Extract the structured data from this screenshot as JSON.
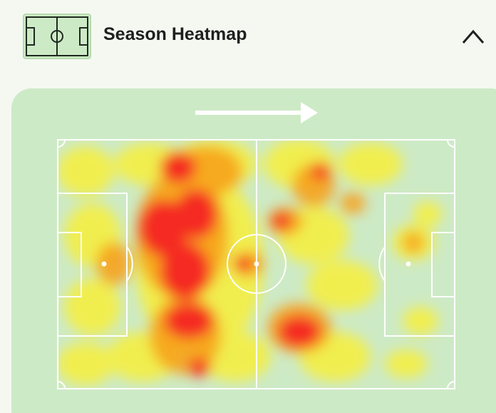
{
  "header": {
    "title": "Season Heatmap"
  }
}
